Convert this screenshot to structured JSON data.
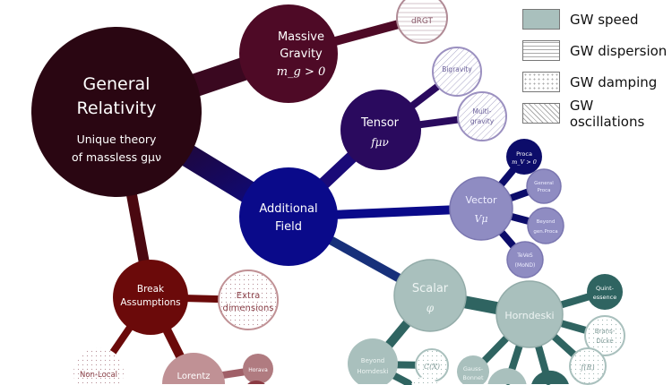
{
  "legend": [
    {
      "label": "GW speed",
      "pattern": "solid",
      "color": "#a9c0bd"
    },
    {
      "label": "GW dispersion",
      "pattern": "horizontal-lines"
    },
    {
      "label": "GW damping",
      "pattern": "dots"
    },
    {
      "label": "GW oscillations",
      "pattern": "diagonal-lines"
    }
  ],
  "nodes": {
    "gr": {
      "title1": "General",
      "title2": "Relativity",
      "sub1": "Unique theory",
      "sub2": "of massless gμν"
    },
    "massive": {
      "l1": "Massive",
      "l2": "Gravity",
      "l3": "m_g > 0"
    },
    "drgt": {
      "l1": "dRGT"
    },
    "tensor": {
      "l1": "Tensor",
      "l2": "fμν"
    },
    "bigravity": {
      "l1": "Bigravity"
    },
    "multigravity": {
      "l1": "Multi-",
      "l2": "gravity"
    },
    "additional": {
      "l1": "Additional",
      "l2": "Field"
    },
    "vector": {
      "l1": "Vector",
      "l2": "Vμ"
    },
    "proca": {
      "l1": "Proca",
      "l2": "m_V > 0"
    },
    "genproca": {
      "l1": "General",
      "l2": "Proca"
    },
    "beyondproca": {
      "l1": "Beyond",
      "l2": "gen.Proca"
    },
    "teves": {
      "l1": "TeVeS",
      "l2": "(MoND)"
    },
    "scalar": {
      "l1": "Scalar",
      "l2": "φ"
    },
    "horndeski": {
      "l1": "Horndeski"
    },
    "quint": {
      "l1": "Quint-",
      "l2": "essence"
    },
    "brans": {
      "l1": "Brans-",
      "l2": "Dicke"
    },
    "fr": {
      "l1": "f(R)"
    },
    "beyondh": {
      "l1": "Beyond",
      "l2": "Horndeski"
    },
    "cx": {
      "l1": "C(X)"
    },
    "gauss": {
      "l1": "Gauss-",
      "l2": "Bonnet"
    },
    "break": {
      "l1": "Break",
      "l2": "Assumptions"
    },
    "extra": {
      "l1": "Extra",
      "l2": "dimensions"
    },
    "nonlocal": {
      "l1": "Non-Local"
    },
    "lorentz": {
      "l1": "Lorentz"
    },
    "horava": {
      "l1": "Horava"
    }
  },
  "colors": {
    "gr": "#2a0612",
    "massive": "#4e0a26",
    "tensor": "#2a0a5e",
    "additional": "#0a0a8a",
    "vector": "#8f8cc2",
    "proca": "#0c0c6a",
    "scalar": "#a9c0bd",
    "teal": "#2f6461",
    "break": "#6b0a0a",
    "lorentz": "#c09195"
  }
}
